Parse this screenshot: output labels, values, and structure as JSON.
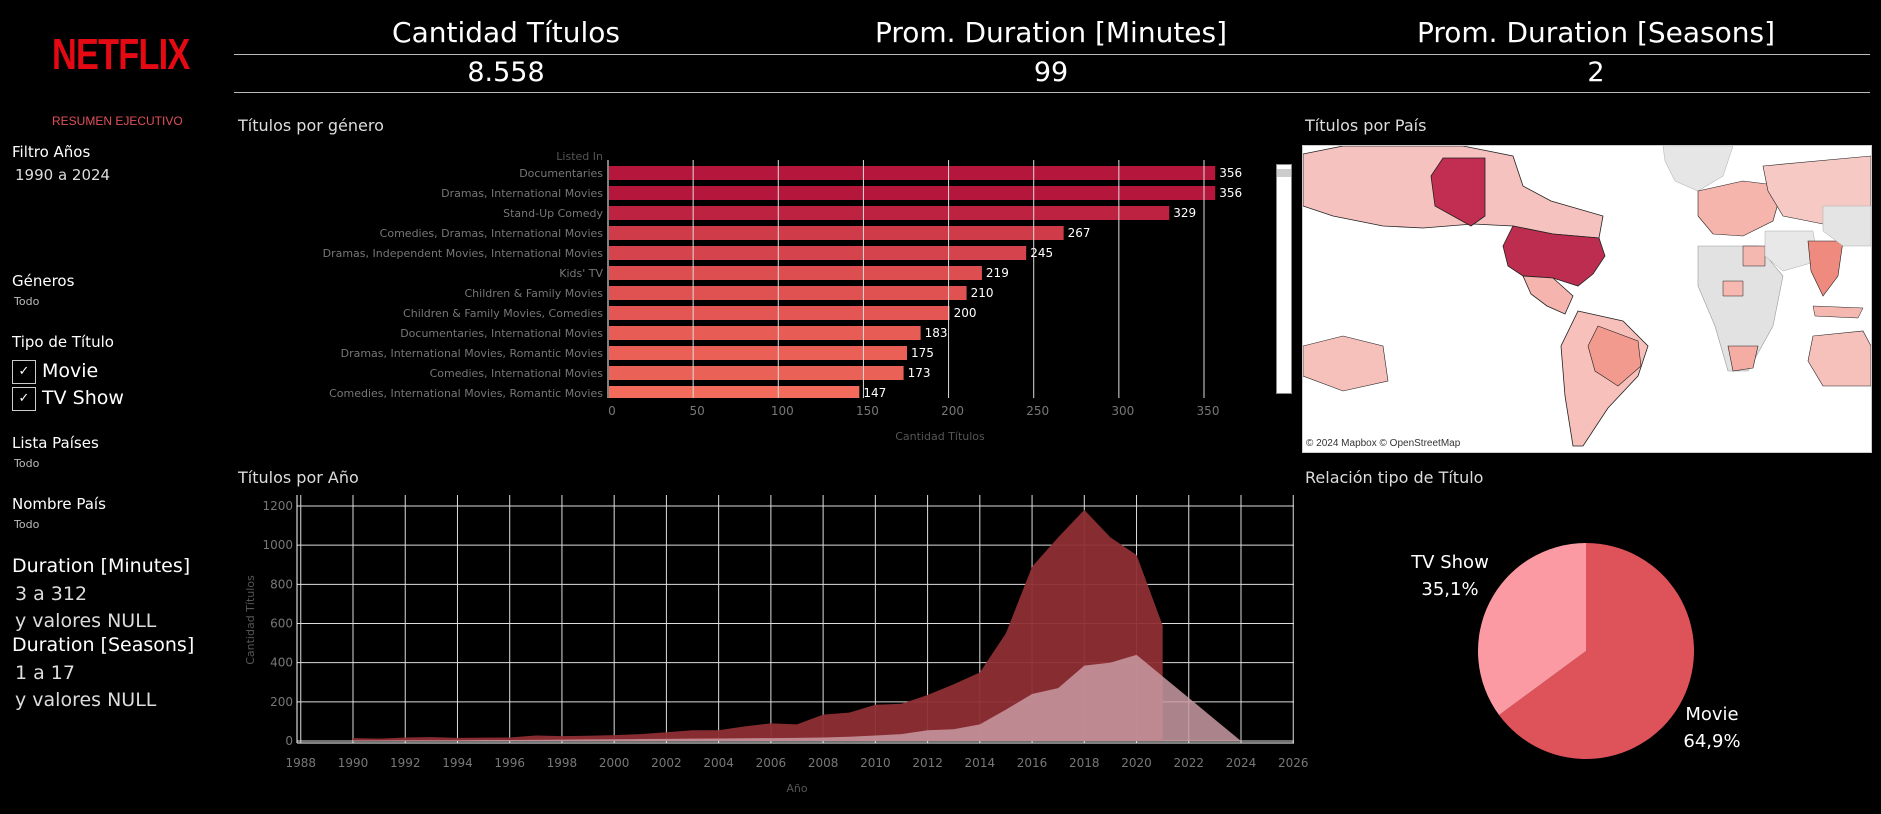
{
  "sidebar": {
    "logo": "NETFLIX",
    "resumen": "RESUMEN EJECUTIVO",
    "filtro_anos_label": "Filtro Años",
    "filtro_anos_value": "1990 a 2024",
    "generos_label": "Géneros",
    "generos_value": "Todo",
    "tipo_label": "Tipo de Título",
    "tipo_options": [
      "Movie",
      "TV Show"
    ],
    "check_mark": "✓",
    "lista_paises_label": "Lista Países",
    "lista_paises_value": "Todo",
    "nombre_pais_label": "Nombre País",
    "nombre_pais_value": "Todo",
    "duration_min_label": "Duration [Minutes]",
    "duration_min_range": "3 a 312",
    "duration_min_null": "y valores NULL",
    "duration_sea_label": "Duration [Seasons]",
    "duration_sea_range": "1 a 17",
    "duration_sea_null": "y valores NULL"
  },
  "kpis": [
    {
      "title": "Cantidad Títulos",
      "value": "8.558"
    },
    {
      "title": "Prom. Duration [Minutes]",
      "value": "99"
    },
    {
      "title": "Prom. Duration [Seasons]",
      "value": "2"
    }
  ],
  "sections": {
    "genero": "Títulos por género",
    "pais": "Títulos por País",
    "ano": "Títulos por Año",
    "relacion": "Relación tipo de Título"
  },
  "map_attribution": "© 2024 Mapbox © OpenStreetMap",
  "colors": {
    "accent": "#e50914",
    "bar_dark": "#b5173c",
    "bar_light": "#f26b5b",
    "area_movie": "#8e2f34",
    "area_tv": "#c99aa2",
    "pie_movie": "#de535a",
    "pie_tv": "#fc9aa3"
  },
  "chart_data": [
    {
      "type": "bar",
      "orientation": "horizontal",
      "title": "Títulos por género",
      "category_header": "Listed In",
      "categories": [
        "Documentaries",
        "Dramas, International Movies",
        "Stand-Up Comedy",
        "Comedies, Dramas, International Movies",
        "Dramas, Independent Movies, International Movies",
        "Kids' TV",
        "Children & Family Movies",
        "Children & Family Movies, Comedies",
        "Documentaries, International Movies",
        "Dramas, International Movies, Romantic Movies",
        "Comedies, International Movies",
        "Comedies, International Movies, Romantic Movies"
      ],
      "values": [
        356,
        356,
        329,
        267,
        245,
        219,
        210,
        200,
        183,
        175,
        173,
        147
      ],
      "xlabel": "Cantidad Títulos",
      "xticks": [
        0,
        50,
        100,
        150,
        200,
        250,
        300,
        350
      ],
      "xlim": [
        0,
        370
      ]
    },
    {
      "type": "area",
      "title": "Títulos por Año",
      "xlabel": "Año",
      "ylabel": "Cantidad Títulos",
      "xticks": [
        1988,
        1990,
        1992,
        1994,
        1996,
        1998,
        2000,
        2002,
        2004,
        2006,
        2008,
        2010,
        2012,
        2014,
        2016,
        2018,
        2020,
        2022,
        2024,
        2026
      ],
      "yticks": [
        0,
        200,
        400,
        600,
        800,
        1000,
        1200
      ],
      "xlim": [
        1987,
        2026.5
      ],
      "ylim": [
        0,
        1250
      ],
      "grid": true,
      "series": [
        {
          "name": "Movie",
          "x": [
            1990,
            1991,
            1992,
            1993,
            1994,
            1995,
            1996,
            1997,
            1998,
            1999,
            2000,
            2001,
            2002,
            2003,
            2004,
            2005,
            2006,
            2007,
            2008,
            2009,
            2010,
            2011,
            2012,
            2013,
            2014,
            2015,
            2016,
            2017,
            2018,
            2019,
            2020,
            2021
          ],
          "y": [
            15,
            12,
            18,
            20,
            16,
            17,
            18,
            28,
            25,
            27,
            30,
            35,
            45,
            55,
            55,
            75,
            90,
            85,
            135,
            145,
            185,
            190,
            235,
            290,
            350,
            550,
            890,
            1040,
            1180,
            1040,
            950,
            590
          ]
        },
        {
          "name": "TV Show",
          "x": [
            1990,
            1991,
            1992,
            1993,
            1994,
            1995,
            1996,
            1997,
            1998,
            1999,
            2000,
            2001,
            2002,
            2003,
            2004,
            2005,
            2006,
            2007,
            2008,
            2009,
            2010,
            2011,
            2012,
            2013,
            2014,
            2015,
            2016,
            2017,
            2018,
            2019,
            2020,
            2021,
            2022,
            2023,
            2024
          ],
          "y": [
            3,
            3,
            4,
            4,
            4,
            5,
            5,
            6,
            7,
            8,
            9,
            10,
            11,
            12,
            13,
            14,
            15,
            16,
            18,
            22,
            28,
            35,
            55,
            60,
            85,
            160,
            240,
            270,
            385,
            400,
            440,
            330,
            220,
            110,
            0
          ]
        }
      ]
    },
    {
      "type": "pie",
      "title": "Relación tipo de Título",
      "slices": [
        {
          "label": "Movie",
          "value": 64.9,
          "text": "64,9%"
        },
        {
          "label": "TV Show",
          "value": 35.1,
          "text": "35,1%"
        }
      ]
    }
  ]
}
